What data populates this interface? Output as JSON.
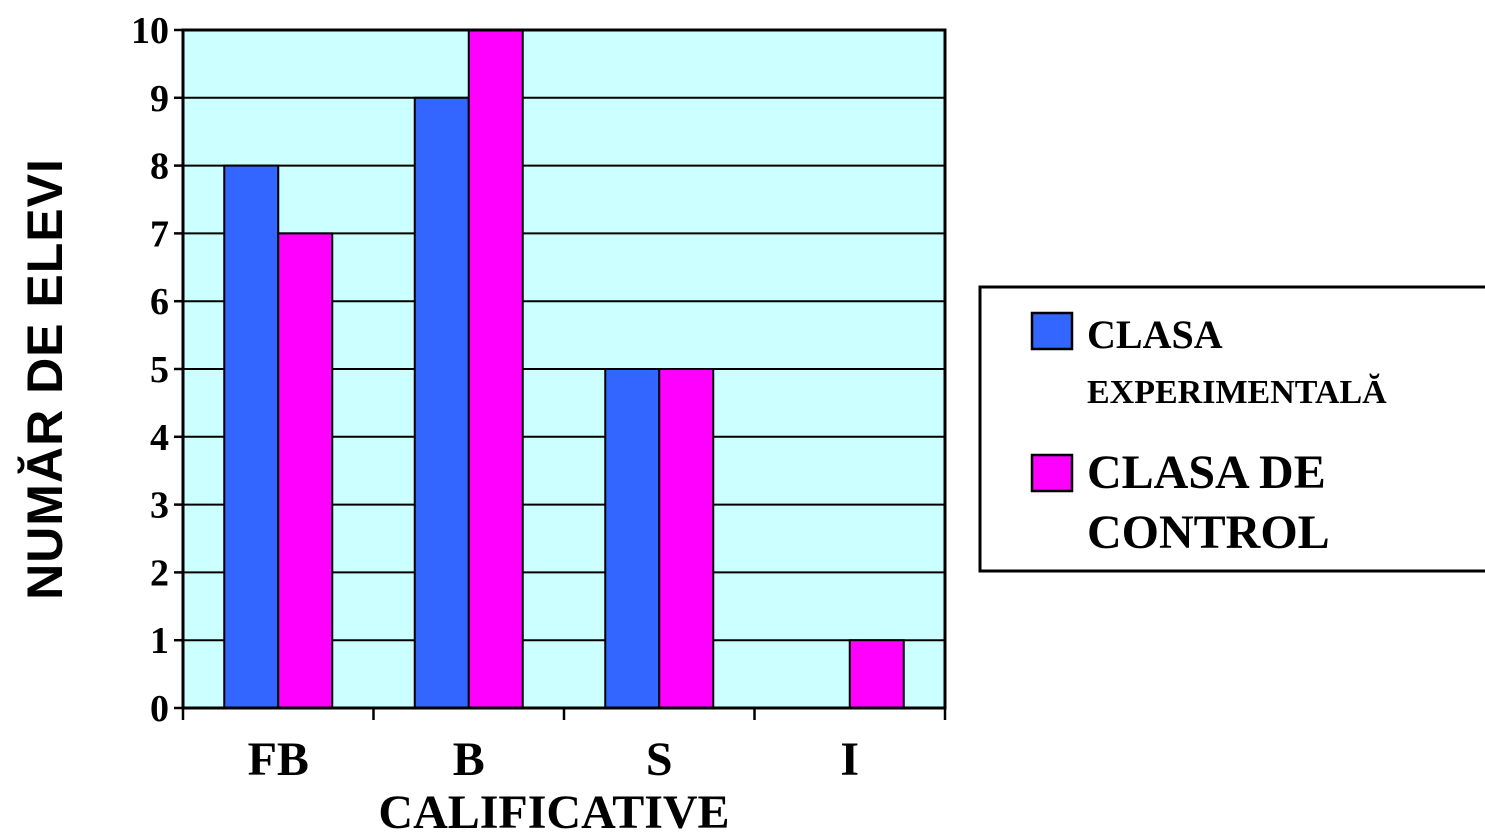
{
  "chart_data": {
    "type": "bar",
    "categories": [
      "FB",
      "B",
      "S",
      "I"
    ],
    "series": [
      {
        "name": "CLASA EXPERIMENTALĂ",
        "name_lines": [
          "CLASA",
          "EXPERIMENTALĂ"
        ],
        "values": [
          8,
          9,
          5,
          0
        ],
        "color": "#3366FF"
      },
      {
        "name": "CLASA DE CONTROL",
        "name_lines": [
          "CLASA  DE",
          "CONTROL"
        ],
        "values": [
          7,
          10,
          5,
          1
        ],
        "color": "#FF00FF"
      }
    ],
    "title": "",
    "xlabel": "CALIFICATIVE",
    "ylabel": "NUMĂR  DE  ELEVI",
    "ylim": [
      0,
      10
    ],
    "yticks": [
      0,
      1,
      2,
      3,
      4,
      5,
      6,
      7,
      8,
      9,
      10
    ],
    "grid": true,
    "legend_position": "right",
    "plot_background": "#CCFFFF"
  }
}
